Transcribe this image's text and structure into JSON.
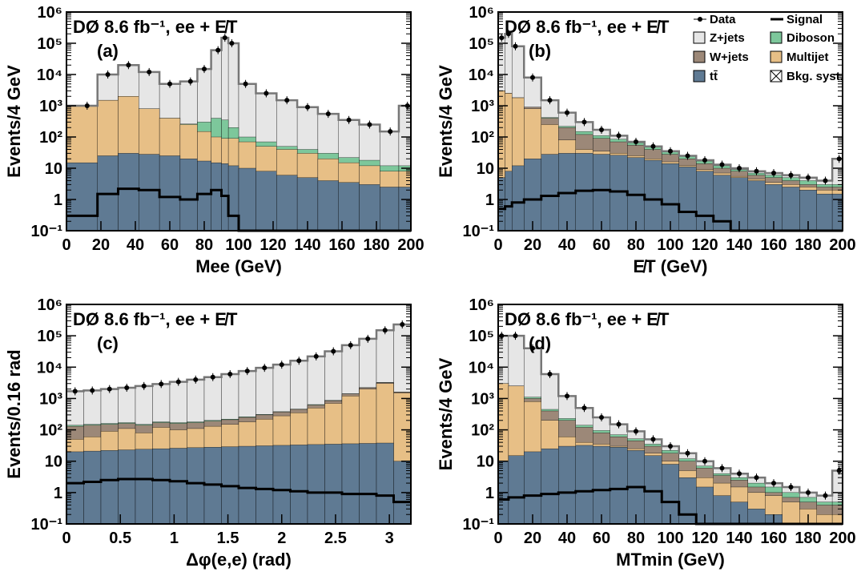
{
  "figure_label": "DØ 8.6 fb⁻¹, ee + E̸T",
  "legend": {
    "entries": [
      {
        "key": "data",
        "label": "Data",
        "color": "#000000"
      },
      {
        "key": "signal",
        "label": "Signal",
        "color": "#000000"
      },
      {
        "key": "zjets",
        "label": "Z+jets",
        "color": "#e6e6e6"
      },
      {
        "key": "diboson",
        "label": "Diboson",
        "color": "#7dc79b"
      },
      {
        "key": "wjets",
        "label": "W+jets",
        "color": "#9c8878"
      },
      {
        "key": "multijet",
        "label": "Multijet",
        "color": "#e7bf86"
      },
      {
        "key": "ttbar",
        "label": "tt̄",
        "color": "#5f7a93"
      },
      {
        "key": "syst",
        "label": "Bkg. syst.",
        "color": "#888888"
      }
    ]
  },
  "chart_data": [
    {
      "type": "area",
      "panel": "(a)",
      "title_line": "DØ 8.6 fb⁻¹, ee + E̸T",
      "xlabel": "Mee (GeV)",
      "ylabel": "Events/4 GeV",
      "xlim": [
        0,
        200
      ],
      "ylim": [
        0.1,
        1000000
      ],
      "y_scale": "log",
      "xticks": [
        "0",
        "20",
        "40",
        "60",
        "80",
        "100",
        "120",
        "140",
        "160",
        "180",
        "200"
      ],
      "yticks": [
        "10⁻¹",
        "1",
        "10",
        "10²",
        "10³",
        "10⁴",
        "10⁵",
        "10⁶"
      ],
      "x": [
        12,
        24,
        36,
        48,
        60,
        72,
        80,
        88,
        92,
        96,
        104,
        116,
        128,
        140,
        152,
        164,
        176,
        188,
        198
      ],
      "series": [
        {
          "name": "tt̄",
          "values": [
            15,
            25,
            30,
            28,
            25,
            20,
            17,
            15,
            14,
            12,
            10,
            8,
            6,
            5,
            4,
            3.5,
            3,
            2.5,
            2.5
          ]
        },
        {
          "name": "Multijet",
          "values": [
            1000,
            1500,
            2000,
            800,
            400,
            250,
            150,
            100,
            90,
            90,
            70,
            50,
            40,
            30,
            20,
            15,
            12,
            8,
            8
          ]
        },
        {
          "name": "Diboson",
          "values": [
            1000,
            1500,
            2000,
            800,
            400,
            260,
            300,
            400,
            350,
            200,
            100,
            70,
            50,
            40,
            30,
            22,
            18,
            12,
            12
          ]
        },
        {
          "name": "Z+jets",
          "values": [
            1000,
            10000,
            20000,
            12000,
            5000,
            6000,
            15000,
            60000,
            150000,
            100000,
            5000,
            2500,
            1500,
            900,
            550,
            350,
            250,
            150,
            1000
          ]
        },
        {
          "name": "Data",
          "values": [
            1000,
            10000,
            20000,
            12000,
            5000,
            6000,
            15000,
            60000,
            150000,
            100000,
            5000,
            2500,
            1500,
            900,
            550,
            350,
            250,
            150,
            1000
          ]
        },
        {
          "name": "Signal",
          "values": [
            0.3,
            1.5,
            2.2,
            2,
            1.2,
            1,
            1.5,
            2,
            1.3,
            0.3,
            0.1,
            0.1,
            0.1,
            0.1,
            0.1,
            0.1,
            0.1,
            0.1,
            0.1
          ]
        }
      ]
    },
    {
      "type": "area",
      "panel": "(b)",
      "title_line": "DØ 8.6 fb⁻¹, ee + E̸T",
      "xlabel": "E̸T (GeV)",
      "ylabel": "Events/4 GeV",
      "xlim": [
        0,
        200
      ],
      "ylim": [
        0.1,
        1000000
      ],
      "y_scale": "log",
      "xticks": [
        "0",
        "20",
        "40",
        "60",
        "80",
        "100",
        "120",
        "140",
        "160",
        "180",
        "200"
      ],
      "yticks": [
        "10⁻¹",
        "1",
        "10",
        "10²",
        "10³",
        "10⁴",
        "10⁵",
        "10⁶"
      ],
      "x": [
        2,
        6,
        10,
        20,
        30,
        40,
        50,
        60,
        70,
        80,
        90,
        100,
        110,
        120,
        130,
        140,
        150,
        160,
        170,
        180,
        190,
        198
      ],
      "series": [
        {
          "name": "tt̄",
          "values": [
            5,
            8,
            12,
            20,
            28,
            30,
            30,
            28,
            26,
            22,
            18,
            14,
            11,
            8,
            6,
            5,
            4,
            3,
            2.5,
            2,
            1.5,
            1.5
          ]
        },
        {
          "name": "Multijet",
          "values": [
            3000,
            2500,
            1800,
            800,
            250,
            80,
            40,
            35,
            30,
            25,
            20,
            16,
            12,
            9,
            7,
            5.5,
            4.5,
            3.5,
            3,
            2.5,
            2,
            2
          ]
        },
        {
          "name": "W+jets",
          "values": [
            3000,
            2500,
            1800,
            900,
            400,
            200,
            120,
            90,
            70,
            55,
            40,
            28,
            20,
            14,
            10,
            8,
            6,
            5,
            4,
            3,
            2.5,
            2.5
          ]
        },
        {
          "name": "Diboson",
          "values": [
            3000,
            2500,
            1800,
            900,
            420,
            220,
            150,
            110,
            85,
            65,
            48,
            34,
            24,
            17,
            12,
            9,
            7,
            6,
            5,
            4,
            3,
            3
          ]
        },
        {
          "name": "Z+jets",
          "values": [
            150000,
            200000,
            80000,
            8000,
            1500,
            600,
            300,
            170,
            110,
            70,
            50,
            35,
            25,
            18,
            13,
            10,
            8,
            7,
            6,
            5,
            4,
            20
          ]
        },
        {
          "name": "Data",
          "values": [
            150000,
            200000,
            80000,
            8000,
            1500,
            600,
            300,
            170,
            110,
            70,
            50,
            35,
            25,
            18,
            13,
            10,
            8,
            7,
            6,
            5,
            4,
            20
          ]
        },
        {
          "name": "Signal",
          "values": [
            0.5,
            0.6,
            0.8,
            1,
            1.3,
            1.6,
            1.9,
            2,
            1.8,
            1.4,
            1,
            0.7,
            0.4,
            0.3,
            0.2,
            0.1,
            0.1,
            0.1,
            0.1,
            0.1,
            0.1,
            0.1
          ]
        }
      ]
    },
    {
      "type": "area",
      "panel": "(c)",
      "title_line": "DØ 8.6 fb⁻¹, ee + E̸T",
      "xlabel": "Δφ(e,e) (rad)",
      "ylabel": "Events/0.16 rad",
      "xlim": [
        0,
        3.2
      ],
      "ylim": [
        0.1,
        1000000
      ],
      "y_scale": "log",
      "xticks": [
        "0",
        "0.5",
        "1",
        "1.5",
        "2",
        "2.5",
        "3"
      ],
      "yticks": [
        "10⁻¹",
        "1",
        "10",
        "10²",
        "10³",
        "10⁴",
        "10⁵",
        "10⁶"
      ],
      "x": [
        0.08,
        0.24,
        0.4,
        0.56,
        0.72,
        0.88,
        1.04,
        1.2,
        1.36,
        1.52,
        1.68,
        1.84,
        2,
        2.16,
        2.32,
        2.48,
        2.64,
        2.8,
        2.96,
        3.12
      ],
      "series": [
        {
          "name": "tt̄",
          "values": [
            20,
            21,
            22,
            23,
            24,
            25,
            26,
            27,
            28,
            29,
            30,
            31,
            32,
            33,
            34,
            35,
            36,
            37,
            38,
            10
          ]
        },
        {
          "name": "Multijet",
          "values": [
            50,
            60,
            90,
            110,
            80,
            120,
            100,
            110,
            130,
            150,
            180,
            220,
            280,
            350,
            500,
            700,
            1200,
            2000,
            3000,
            1500
          ]
        },
        {
          "name": "W+jets",
          "values": [
            130,
            140,
            150,
            160,
            140,
            170,
            160,
            170,
            190,
            210,
            250,
            300,
            370,
            450,
            620,
            850,
            1400,
            2200,
            3200,
            1600
          ]
        },
        {
          "name": "Diboson",
          "values": [
            140,
            150,
            160,
            170,
            150,
            180,
            170,
            180,
            200,
            220,
            260,
            310,
            380,
            460,
            640,
            870,
            1420,
            2220,
            3250,
            1620
          ]
        },
        {
          "name": "Z+jets",
          "values": [
            1700,
            1800,
            2000,
            2200,
            2500,
            2900,
            3400,
            4000,
            4800,
            6000,
            7500,
            9500,
            12000,
            16000,
            22000,
            32000,
            50000,
            80000,
            150000,
            230000
          ]
        },
        {
          "name": "Data",
          "values": [
            1700,
            1800,
            2000,
            2200,
            2500,
            2900,
            3400,
            4000,
            4800,
            6000,
            7500,
            9500,
            12000,
            16000,
            22000,
            32000,
            50000,
            80000,
            150000,
            230000
          ]
        },
        {
          "name": "Signal",
          "values": [
            2,
            2.2,
            2.5,
            2.7,
            2.7,
            2.5,
            2.3,
            2,
            1.8,
            1.6,
            1.4,
            1.3,
            1.2,
            1.1,
            1,
            1,
            0.9,
            0.9,
            0.8,
            0.5
          ]
        }
      ]
    },
    {
      "type": "area",
      "panel": "(d)",
      "title_line": "DØ 8.6 fb⁻¹, ee + E̸T",
      "xlabel": "MTmin (GeV)",
      "ylabel": "Events/4 GeV",
      "xlim": [
        0,
        200
      ],
      "ylim": [
        0.1,
        1000000
      ],
      "y_scale": "log",
      "xticks": [
        "0",
        "20",
        "40",
        "60",
        "80",
        "100",
        "120",
        "140",
        "160",
        "180",
        "200"
      ],
      "yticks": [
        "10⁻¹",
        "1",
        "10",
        "10²",
        "10³",
        "10⁴",
        "10⁵",
        "10⁶"
      ],
      "x": [
        2,
        10,
        20,
        30,
        40,
        50,
        60,
        70,
        80,
        90,
        100,
        110,
        120,
        130,
        140,
        150,
        160,
        170,
        180,
        190,
        198
      ],
      "series": [
        {
          "name": "tt̄",
          "values": [
            10,
            15,
            20,
            25,
            30,
            32,
            30,
            28,
            22,
            15,
            8,
            3,
            1.5,
            0.8,
            0.5,
            0.3,
            0.2,
            0.1,
            0.1,
            0.1,
            0.1
          ]
        },
        {
          "name": "Multijet",
          "values": [
            3000,
            2500,
            800,
            200,
            60,
            40,
            35,
            30,
            25,
            18,
            10,
            5,
            3,
            2,
            1.5,
            1,
            0.8,
            0.5,
            0.3,
            0.2,
            0.2
          ]
        },
        {
          "name": "W+jets",
          "values": [
            3000,
            2500,
            1000,
            400,
            200,
            120,
            80,
            60,
            45,
            30,
            18,
            10,
            6,
            3.5,
            2.5,
            1.5,
            1,
            0.7,
            0.5,
            0.4,
            0.4
          ]
        },
        {
          "name": "Diboson",
          "values": [
            3000,
            2500,
            1100,
            450,
            230,
            140,
            95,
            70,
            52,
            35,
            22,
            12,
            7,
            4,
            3,
            2,
            1.5,
            1,
            0.7,
            0.5,
            0.5
          ]
        },
        {
          "name": "Z+jets",
          "values": [
            100000,
            100000,
            40000,
            6000,
            1200,
            500,
            250,
            150,
            90,
            50,
            30,
            18,
            10,
            6,
            4,
            3,
            2,
            1.5,
            1,
            0.8,
            5
          ]
        },
        {
          "name": "Data",
          "values": [
            100000,
            100000,
            40000,
            6000,
            1200,
            500,
            250,
            150,
            90,
            50,
            30,
            18,
            10,
            6,
            4,
            3,
            2,
            1.5,
            1,
            0.8,
            5
          ]
        },
        {
          "name": "Signal",
          "values": [
            0.6,
            0.7,
            0.8,
            0.9,
            1,
            1.1,
            1.2,
            1.3,
            1.5,
            1.1,
            0.5,
            0.2,
            0.1,
            0.1,
            0.1,
            0.1,
            0.1,
            0.1,
            0.1,
            0.1,
            0.1
          ]
        }
      ]
    }
  ]
}
